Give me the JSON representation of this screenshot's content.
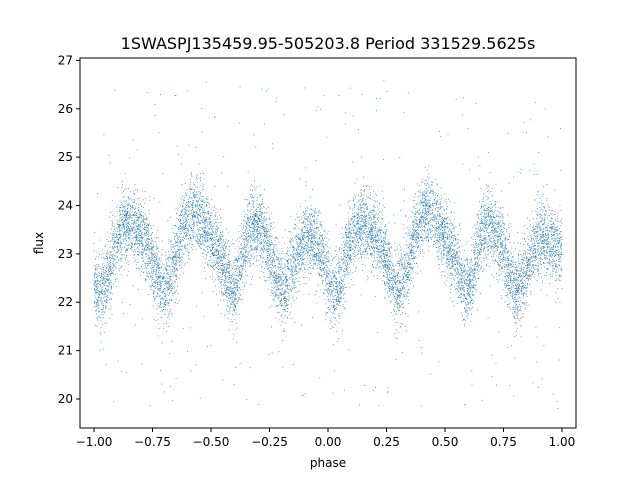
{
  "chart_data": {
    "type": "scatter",
    "title": "1SWASPJ135459.95-505203.8 Period 331529.5625s",
    "xlabel": "phase",
    "ylabel": "flux",
    "xlim": [
      -1.06,
      1.06
    ],
    "ylim": [
      19.4,
      27.05
    ],
    "xticks": [
      -1.0,
      -0.75,
      -0.5,
      -0.25,
      0.0,
      0.25,
      0.5,
      0.75,
      1.0
    ],
    "xtick_labels": [
      "−1.00",
      "−0.75",
      "−0.50",
      "−0.25",
      "0.00",
      "0.25",
      "0.50",
      "0.75",
      "1.00"
    ],
    "yticks": [
      20,
      21,
      22,
      23,
      24,
      25,
      26,
      27
    ],
    "ytick_labels": [
      "20",
      "21",
      "22",
      "23",
      "24",
      "25",
      "26",
      "27"
    ],
    "grid": false,
    "legend": "none",
    "point_color": "#1f77b4",
    "series_model": {
      "phase_range": [
        -1.0,
        1.0
      ],
      "n_points": 11000,
      "baseline_flux": 23.0,
      "noise_sigma": 0.38,
      "outlier_fraction": 0.03,
      "outlier_flux_range": [
        19.8,
        26.6
      ],
      "features": [
        {
          "phase": -0.97,
          "flux_shift": -0.9,
          "width": 0.035
        },
        {
          "phase": -0.85,
          "flux_shift": 0.6,
          "width": 0.06
        },
        {
          "phase": -0.7,
          "flux_shift": -0.8,
          "width": 0.035
        },
        {
          "phase": -0.57,
          "flux_shift": 0.9,
          "width": 0.05
        },
        {
          "phase": -0.4,
          "flux_shift": -0.9,
          "width": 0.03
        },
        {
          "phase": -0.32,
          "flux_shift": 0.6,
          "width": 0.05
        },
        {
          "phase": -0.19,
          "flux_shift": -0.8,
          "width": 0.035
        },
        {
          "phase": -0.08,
          "flux_shift": 0.35,
          "width": 0.05
        },
        {
          "phase": 0.03,
          "flux_shift": -0.9,
          "width": 0.035
        },
        {
          "phase": 0.15,
          "flux_shift": 0.6,
          "width": 0.06
        },
        {
          "phase": 0.3,
          "flux_shift": -0.8,
          "width": 0.035
        },
        {
          "phase": 0.43,
          "flux_shift": 0.9,
          "width": 0.05
        },
        {
          "phase": 0.6,
          "flux_shift": -0.9,
          "width": 0.03
        },
        {
          "phase": 0.68,
          "flux_shift": 0.6,
          "width": 0.05
        },
        {
          "phase": 0.81,
          "flux_shift": -0.8,
          "width": 0.035
        },
        {
          "phase": 0.92,
          "flux_shift": 0.35,
          "width": 0.05
        }
      ]
    }
  }
}
